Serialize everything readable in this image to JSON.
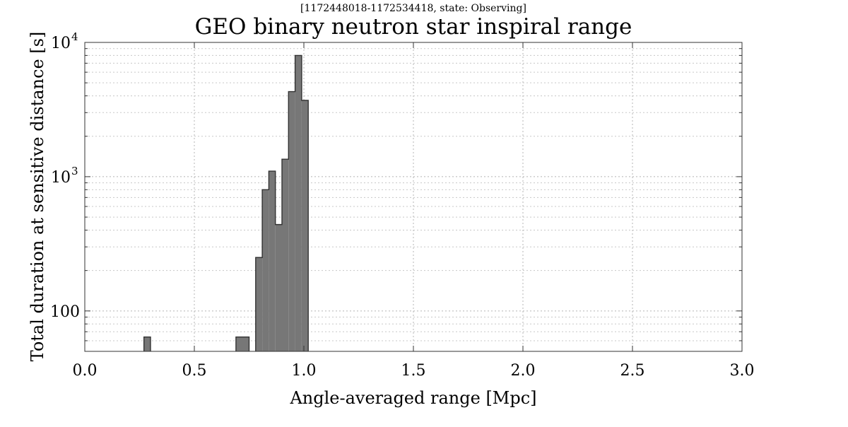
{
  "chart_data": {
    "type": "bar",
    "subtitle": "[1172448018-1172534418, state: Observing]",
    "title": "GEO binary neutron star inspiral range",
    "xlabel": "Angle-averaged range [Mpc]",
    "ylabel": "Total duration at sensitive distance [s]",
    "xlim": [
      0.0,
      3.0
    ],
    "ylim": [
      50,
      10000
    ],
    "yscale": "log",
    "grid": true,
    "x_ticks": [
      "0.0",
      "0.5",
      "1.0",
      "1.5",
      "2.0",
      "2.5",
      "3.0"
    ],
    "y_ticks": [
      {
        "value": 100,
        "base": "100",
        "exp": ""
      },
      {
        "value": 1000,
        "base": "10",
        "exp": "3"
      },
      {
        "value": 10000,
        "base": "10",
        "exp": "4"
      }
    ],
    "bins": [
      {
        "x0": 0.27,
        "x1": 0.3,
        "value": 64
      },
      {
        "x0": 0.69,
        "x1": 0.75,
        "value": 64
      },
      {
        "x0": 0.78,
        "x1": 0.81,
        "value": 250
      },
      {
        "x0": 0.81,
        "x1": 0.84,
        "value": 800
      },
      {
        "x0": 0.84,
        "x1": 0.87,
        "value": 1100
      },
      {
        "x0": 0.87,
        "x1": 0.9,
        "value": 440
      },
      {
        "x0": 0.9,
        "x1": 0.93,
        "value": 1350
      },
      {
        "x0": 0.93,
        "x1": 0.96,
        "value": 4300
      },
      {
        "x0": 0.96,
        "x1": 0.99,
        "value": 8000
      },
      {
        "x0": 0.99,
        "x1": 1.02,
        "value": 3700
      }
    ],
    "bar_color": "#777777",
    "edge_color": "#333333"
  }
}
